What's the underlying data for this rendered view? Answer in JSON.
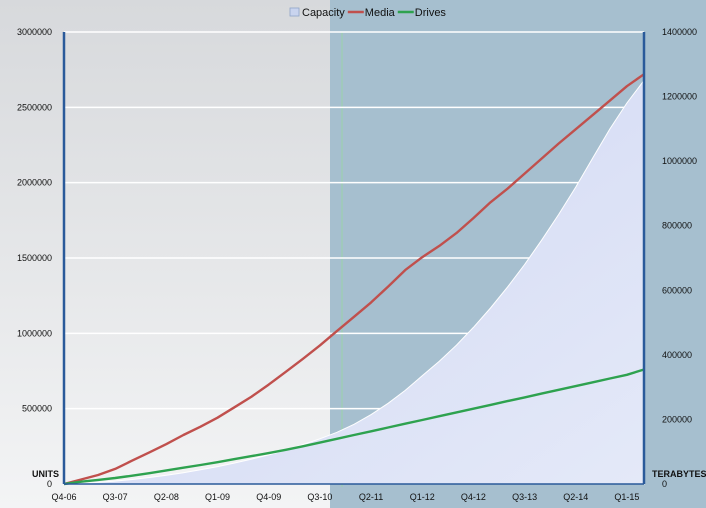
{
  "chart_data": {
    "type": "line",
    "legend": {
      "placement": "top-center",
      "items": [
        {
          "name": "Capacity",
          "type": "area",
          "color": "#c9d4ee"
        },
        {
          "name": "Media",
          "type": "line",
          "color": "#c0504d"
        },
        {
          "name": "Drives",
          "type": "line",
          "color": "#2ea24f"
        }
      ]
    },
    "left_axis": {
      "label": "UNITS",
      "ylim": [
        0,
        3000000
      ],
      "ticks": [
        0,
        500000,
        1000000,
        1500000,
        2000000,
        2500000,
        3000000
      ]
    },
    "right_axis": {
      "label": "TERABYTES",
      "ylim": [
        0,
        1400000
      ],
      "ticks": [
        0,
        200000,
        400000,
        600000,
        800000,
        1000000,
        1200000,
        1400000
      ]
    },
    "x": [
      "Q4-06",
      "Q1-07",
      "Q2-07",
      "Q3-07",
      "Q4-07",
      "Q1-08",
      "Q2-08",
      "Q3-08",
      "Q4-08",
      "Q1-09",
      "Q2-09",
      "Q3-09",
      "Q4-09",
      "Q1-10",
      "Q2-10",
      "Q3-10",
      "Q4-10",
      "Q1-11",
      "Q2-11",
      "Q3-11",
      "Q4-11",
      "Q1-12",
      "Q2-12",
      "Q3-12",
      "Q4-12",
      "Q1-13",
      "Q2-13",
      "Q3-13",
      "Q4-13",
      "Q1-14",
      "Q2-14",
      "Q3-14",
      "Q4-14",
      "Q1-15",
      "Q2-15"
    ],
    "x_tick_labels": [
      "Q4-06",
      "Q3-07",
      "Q2-08",
      "Q1-09",
      "Q4-09",
      "Q3-10",
      "Q2-11",
      "Q1-12",
      "Q4-12",
      "Q3-13",
      "Q2-14",
      "Q1-15"
    ],
    "series": [
      {
        "name": "Media",
        "axis": "left",
        "values": [
          0,
          30000,
          60000,
          100000,
          155000,
          210000,
          265000,
          325000,
          380000,
          440000,
          510000,
          580000,
          660000,
          745000,
          830000,
          920000,
          1015000,
          1110000,
          1205000,
          1310000,
          1420000,
          1505000,
          1580000,
          1665000,
          1765000,
          1870000,
          1960000,
          2060000,
          2160000,
          2260000,
          2355000,
          2450000,
          2545000,
          2640000,
          2720000
        ]
      },
      {
        "name": "Drives",
        "axis": "left",
        "values": [
          0,
          15000,
          27000,
          40000,
          55000,
          72000,
          90000,
          108000,
          126000,
          145000,
          165000,
          185000,
          205000,
          227000,
          250000,
          275000,
          300000,
          325000,
          350000,
          375000,
          400000,
          425000,
          450000,
          475000,
          500000,
          525000,
          550000,
          575000,
          600000,
          625000,
          650000,
          675000,
          700000,
          725000,
          760000
        ]
      },
      {
        "name": "Capacity",
        "axis": "right",
        "type": "area",
        "values": [
          0,
          2000,
          5000,
          9000,
          14000,
          20000,
          27000,
          35000,
          44000,
          54000,
          65000,
          77000,
          90000,
          105000,
          122000,
          140000,
          160000,
          185000,
          215000,
          250000,
          290000,
          335000,
          380000,
          430000,
          485000,
          545000,
          610000,
          680000,
          755000,
          835000,
          920000,
          1010000,
          1100000,
          1180000,
          1250000
        ]
      }
    ],
    "grid": true
  }
}
